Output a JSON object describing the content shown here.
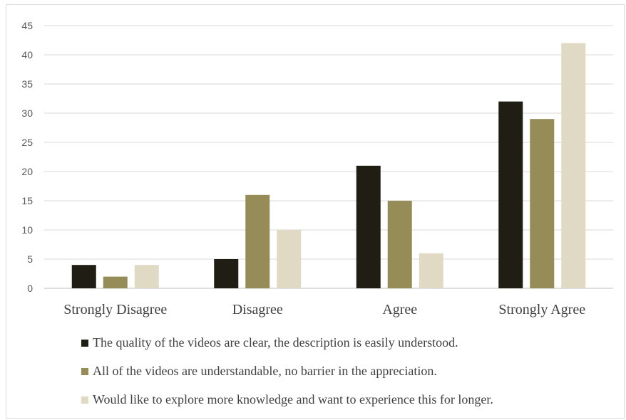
{
  "chart_data": {
    "type": "bar",
    "title": "",
    "xlabel": "",
    "ylabel": "",
    "categories": [
      "Strongly Disagree",
      "Disagree",
      "Agree",
      "Strongly Agree"
    ],
    "series": [
      {
        "name": "The quality of the videos are clear, the description is easily understood.",
        "color": "#1f1d14",
        "values": [
          4,
          5,
          21,
          32
        ]
      },
      {
        "name": "All of the videos are understandable, no barrier in the appreciation.",
        "color": "#968c57",
        "values": [
          2,
          16,
          15,
          29
        ]
      },
      {
        "name": "Would like to explore more knowledge and want to experience this for longer.",
        "color": "#e0d9c3",
        "values": [
          4,
          10,
          6,
          42
        ]
      }
    ],
    "ylim": [
      0,
      45
    ],
    "yticks": [
      0,
      5,
      10,
      15,
      20,
      25,
      30,
      35,
      40,
      45
    ],
    "grid": true,
    "legend_position": "bottom"
  }
}
